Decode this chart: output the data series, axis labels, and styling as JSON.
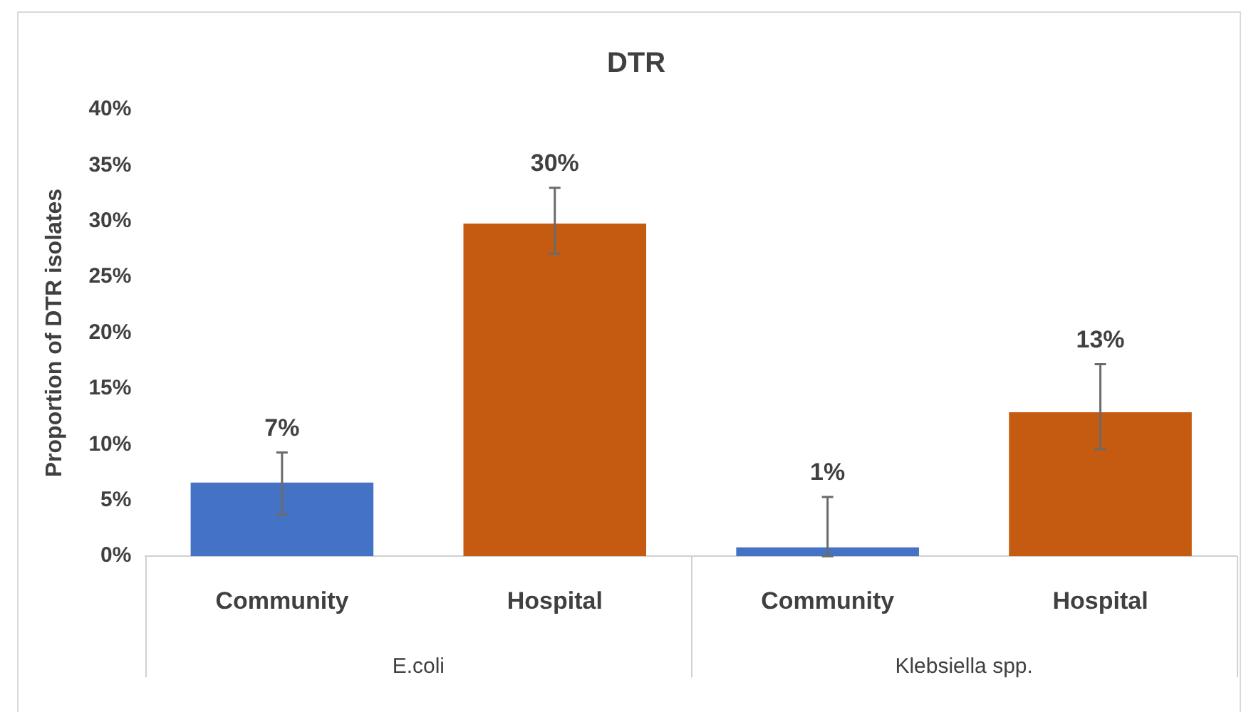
{
  "chart_data": {
    "type": "bar",
    "title": "DTR",
    "ylabel": "Proportion of DTR isolates",
    "categories": [
      "Community",
      "Hospital",
      "Community",
      "Hospital"
    ],
    "values": [
      6.6,
      29.8,
      0.8,
      12.9
    ],
    "colors": [
      "#4472c4",
      "#c55a11",
      "#4472c4",
      "#c55a11"
    ],
    "errors": [
      [
        3.7,
        9.3
      ],
      [
        27.1,
        33
      ],
      [
        0,
        5.3
      ],
      [
        9.6,
        17.2
      ]
    ],
    "value_labels": [
      "7%",
      "30%",
      "1%",
      "13%"
    ],
    "annotations": [
      "E.coli",
      "Klebsiella spp."
    ],
    "ylim": [
      0,
      40
    ],
    "yticks": [
      {
        "value": 0,
        "label": "0%"
      },
      {
        "value": 5,
        "label": "5%"
      },
      {
        "value": 10,
        "label": "10%"
      },
      {
        "value": 15,
        "label": "15%"
      },
      {
        "value": 20,
        "label": "20%"
      },
      {
        "value": 25,
        "label": "25%"
      },
      {
        "value": 30,
        "label": "30%"
      },
      {
        "value": 35,
        "label": "35%"
      },
      {
        "value": 40,
        "label": "40%"
      }
    ],
    "grid": false,
    "legend": false
  }
}
